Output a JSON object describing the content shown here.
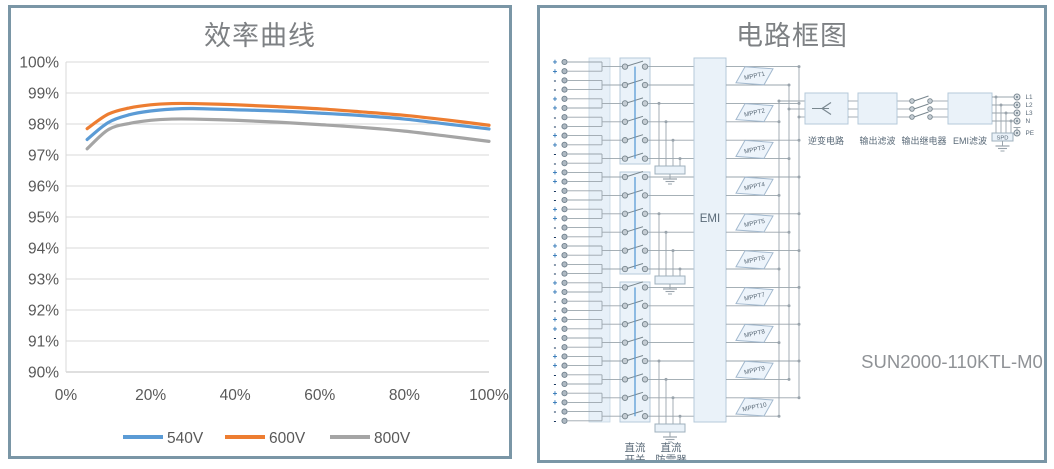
{
  "left_panel": {
    "title": "效率曲线"
  },
  "chart_data": {
    "type": "line",
    "title": "效率曲线",
    "xlabel": "",
    "ylabel": "",
    "x": [
      5,
      10,
      15,
      20,
      25,
      30,
      40,
      50,
      60,
      70,
      80,
      90,
      100
    ],
    "series": [
      {
        "name": "540V",
        "color": "#5B9BD5",
        "values": [
          97.5,
          98.05,
          98.3,
          98.42,
          98.48,
          98.5,
          98.46,
          98.42,
          98.35,
          98.27,
          98.16,
          98.0,
          97.84
        ]
      },
      {
        "name": "600V",
        "color": "#ED7D31",
        "values": [
          97.85,
          98.32,
          98.52,
          98.62,
          98.66,
          98.66,
          98.62,
          98.56,
          98.49,
          98.39,
          98.28,
          98.13,
          97.96
        ]
      },
      {
        "name": "800V",
        "color": "#A5A5A5",
        "values": [
          97.2,
          97.82,
          98.02,
          98.12,
          98.16,
          98.16,
          98.12,
          98.06,
          97.98,
          97.89,
          97.77,
          97.61,
          97.44
        ]
      }
    ],
    "xlim": [
      0,
      100
    ],
    "ylim": [
      90,
      100
    ],
    "x_ticks": [
      "0%",
      "20%",
      "40%",
      "60%",
      "80%",
      "100%"
    ],
    "y_ticks": [
      "100%",
      "99%",
      "98%",
      "97%",
      "96%",
      "95%",
      "94%",
      "93%",
      "92%",
      "91%",
      "90%"
    ],
    "grid": true,
    "legend_position": "bottom"
  },
  "right_panel": {
    "title": "电路框图",
    "model_label": "SUN2000-110KTL-M0",
    "emi_label": "EMI",
    "mppt_labels": [
      "MPPT1",
      "MPPT2",
      "MPPT3",
      "MPPT4",
      "MPPT5",
      "MPPT6",
      "MPPT7",
      "MPPT8",
      "MPPT9",
      "MPPT10"
    ],
    "inverter_label": "逆变电路",
    "output_filter_label": "输出滤波",
    "output_relay_label": "输出继电器",
    "emi_filter_label": "EMI滤波",
    "spd_label": "SPD",
    "dc_switch_label": [
      "直流",
      "开关"
    ],
    "dc_arrester_label": [
      "直流",
      "防雷器"
    ],
    "output_terminals": [
      "L1",
      "L2",
      "L3",
      "N",
      "PE"
    ],
    "plus_sign": "+",
    "minus_sign": "-",
    "colors": {
      "border": "#7A96A6",
      "wire": "#9AA4AC",
      "box_fill": "#EAF2F9",
      "box_stroke": "#B5C9DA",
      "gang_blue": "#5B9BD5",
      "plus": "#2E75B6",
      "minus": "#17375E",
      "text": "#5A6A78",
      "model_text": "#8F9296"
    }
  },
  "panel_border_color": "#7A96A6"
}
